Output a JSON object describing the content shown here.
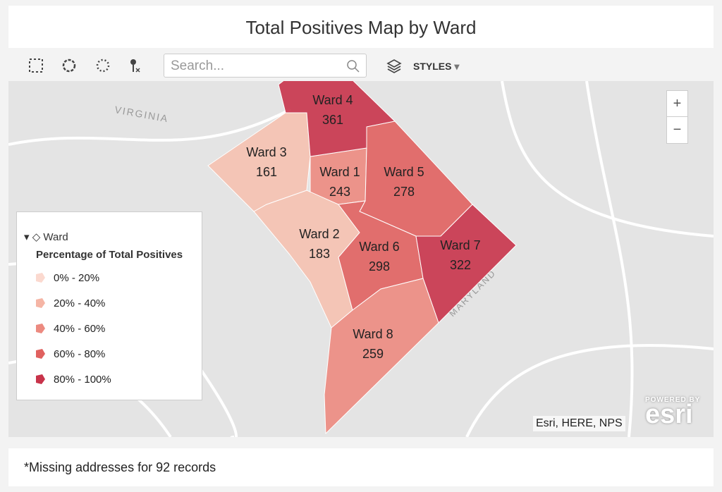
{
  "header": {
    "title": "Total Positives Map by Ward"
  },
  "toolbar": {
    "search_placeholder": "Search...",
    "styles": "STYLES"
  },
  "map": {
    "labels": [
      "VIRGINIA",
      "MARYLAND"
    ],
    "wards": [
      {
        "name": "Ward 1",
        "value": 243,
        "color": "#ec8a80"
      },
      {
        "name": "Ward 2",
        "value": 183,
        "color": "#f5c1b0"
      },
      {
        "name": "Ward 3",
        "value": 161,
        "color": "#f5c1b0"
      },
      {
        "name": "Ward 4",
        "value": 361,
        "color": "#c8334a"
      },
      {
        "name": "Ward 5",
        "value": 278,
        "color": "#e0615f"
      },
      {
        "name": "Ward 6",
        "value": 298,
        "color": "#e0615f"
      },
      {
        "name": "Ward 7",
        "value": 322,
        "color": "#c8334a"
      },
      {
        "name": "Ward 8",
        "value": 259,
        "color": "#ec8a80"
      }
    ],
    "zoom_in": "+",
    "zoom_out": "−",
    "attribution": "Esri, HERE, NPS",
    "powered_by": "POWERED BY",
    "brand": "esri"
  },
  "legend": {
    "layer": "Ward",
    "title": "Percentage of Total Positives",
    "items": [
      {
        "label": "0% - 20%",
        "color": "#fbd9cf"
      },
      {
        "label": "20% - 40%",
        "color": "#f5b5a5"
      },
      {
        "label": "40% - 60%",
        "color": "#ec8a80"
      },
      {
        "label": "60% - 80%",
        "color": "#e0615f"
      },
      {
        "label": "80% - 100%",
        "color": "#c8334a"
      }
    ]
  },
  "footer": {
    "note": "*Missing addresses for 92 records"
  }
}
